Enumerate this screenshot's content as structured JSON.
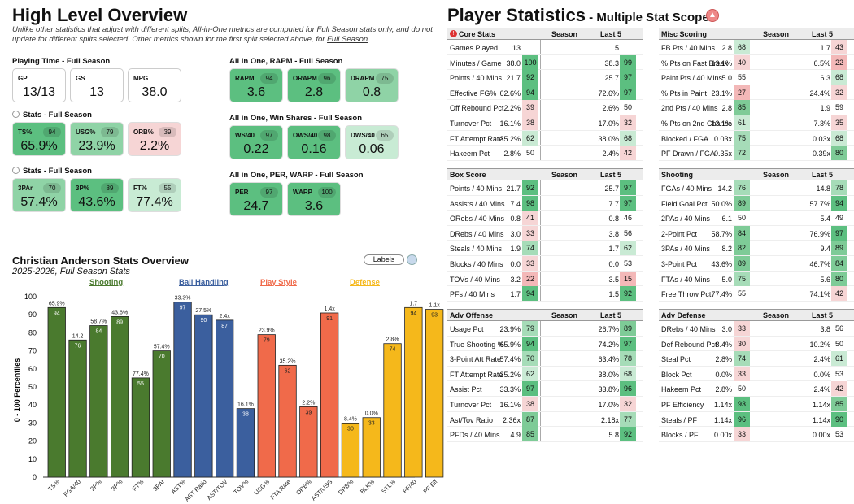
{
  "left": {
    "title": "High Level Overview",
    "note_parts": [
      "Unlike other statistics that adjust with different splits, All-in-One metrics are computed for ",
      "Full Season stats",
      " only, and do not update for different splits selected. Other metrics shown for the first split selected above, for ",
      "Full Season",
      "."
    ],
    "sections": [
      {
        "label": "Playing Time - Full Season",
        "cards": [
          {
            "lab": "GP",
            "val": "13/13",
            "pct": "",
            "color": "plain"
          },
          {
            "lab": "GS",
            "val": "13",
            "pct": "",
            "color": "plain"
          },
          {
            "lab": "MPG",
            "val": "38.0",
            "pct": "",
            "color": "plain"
          }
        ]
      },
      {
        "label": "Stats - Full Season",
        "cards": [
          {
            "lab": "TS%",
            "val": "65.9%",
            "pct": "94",
            "color": "g-dark"
          },
          {
            "lab": "USG%",
            "val": "23.9%",
            "pct": "79",
            "color": "g-mid"
          },
          {
            "lab": "ORB%",
            "val": "2.2%",
            "pct": "39",
            "color": "r-light"
          }
        ]
      },
      {
        "label": "Stats - Full Season",
        "cards": [
          {
            "lab": "3PAr",
            "val": "57.4%",
            "pct": "70",
            "color": "g-mid"
          },
          {
            "lab": "3P%",
            "val": "43.6%",
            "pct": "89",
            "color": "g-dark"
          },
          {
            "lab": "FT%",
            "val": "77.4%",
            "pct": "55",
            "color": "g-light"
          }
        ]
      },
      {
        "label": "All in One, RAPM - Full Season",
        "cards": [
          {
            "lab": "RAPM",
            "val": "3.6",
            "pct": "94",
            "color": "g-dark"
          },
          {
            "lab": "ORAPM",
            "val": "2.8",
            "pct": "96",
            "color": "g-dark"
          },
          {
            "lab": "DRAPM",
            "val": "0.8",
            "pct": "75",
            "color": "g-mid"
          }
        ]
      },
      {
        "label": "All in One, Win Shares - Full Season",
        "cards": [
          {
            "lab": "WS/40",
            "val": "0.22",
            "pct": "97",
            "color": "g-dark"
          },
          {
            "lab": "OWS/40",
            "val": "0.16",
            "pct": "98",
            "color": "g-dark"
          },
          {
            "lab": "DWS/40",
            "val": "0.06",
            "pct": "65",
            "color": "g-light"
          }
        ]
      },
      {
        "label": "All in One, PER, WARP - Full Season",
        "cards": [
          {
            "lab": "PER",
            "val": "24.7",
            "pct": "97",
            "color": "g-dark"
          },
          {
            "lab": "WARP",
            "val": "3.6",
            "pct": "100",
            "color": "g-dark"
          }
        ]
      }
    ],
    "chart_title": "Christian Anderson Stats Overview",
    "chart_subtitle": "2025-2026, Full Season Stats",
    "labels_button": "Labels",
    "categories": [
      {
        "name": "Shooting",
        "color": "#4a7a2e"
      },
      {
        "name": "Ball Handling",
        "color": "#3b5f9e"
      },
      {
        "name": "Play Style",
        "color": "#f06a4a"
      },
      {
        "name": "Defense",
        "color": "#f5b81b"
      }
    ]
  },
  "chart_data": {
    "type": "bar",
    "ylabel": "0 - 100 Percentiles",
    "ylim": [
      0,
      100
    ],
    "yticks": [
      0,
      10,
      20,
      30,
      40,
      50,
      60,
      70,
      80,
      90,
      100
    ],
    "categories": [
      "TS%",
      "FGA/40",
      "2P%",
      "3P%",
      "FT%",
      "3PAr",
      "AST%",
      "AST Ratio",
      "AST/TOV",
      "TOV%",
      "USG%",
      "FTA Rate",
      "ORB%",
      "AST/USG",
      "DRB%",
      "BLK%",
      "STL%",
      "PF/40",
      "PF Eff"
    ],
    "values": [
      94,
      76,
      84,
      89,
      55,
      70,
      97,
      90,
      87,
      38,
      79,
      62,
      39,
      91,
      30,
      33,
      74,
      94,
      93
    ],
    "top_labels": [
      "65.9%",
      "14.2",
      "58.7%",
      "43.6%",
      "77.4%",
      "57.4%",
      "33.3%",
      "27.5%",
      "2.4x",
      "16.1%",
      "23.9%",
      "35.2%",
      "2.2%",
      "1.4x",
      "8.4%",
      "0.0%",
      "2.8%",
      "1.7",
      "1.1x"
    ],
    "groups": [
      0,
      0,
      0,
      0,
      0,
      0,
      1,
      1,
      1,
      1,
      2,
      2,
      2,
      2,
      3,
      3,
      3,
      3,
      3
    ],
    "colors": [
      "#4a7a2e",
      "#3b5f9e",
      "#f06a4a",
      "#f5b81b"
    ]
  },
  "right": {
    "title": "Player Statistics",
    "subtitle": " - Multiple Stat Scopes",
    "season_hdr": "Season",
    "last5_hdr": "Last 5",
    "tables": [
      {
        "name": "Core Stats",
        "rows": [
          [
            "Games Played",
            "13",
            "",
            "5",
            ""
          ],
          [
            "Minutes / Game",
            "38.0",
            "100",
            "38.3",
            "99"
          ],
          [
            "Points / 40 Mins",
            "21.7",
            "92",
            "25.7",
            "97"
          ],
          [
            "Effective FG%",
            "62.6%",
            "94",
            "72.6%",
            "97"
          ],
          [
            "Off Rebound Pct",
            "2.2%",
            "39",
            "2.6%",
            "50"
          ],
          [
            "Turnover Pct",
            "16.1%",
            "38",
            "17.0%",
            "32"
          ],
          [
            "FT Attempt Rate",
            "35.2%",
            "62",
            "38.0%",
            "68"
          ],
          [
            "Hakeem Pct",
            "2.8%",
            "50",
            "2.4%",
            "42"
          ]
        ]
      },
      {
        "name": "Misc Scoring",
        "rows": [
          [
            "FB Pts / 40 Mins",
            "2.8",
            "68",
            "1.7",
            "43"
          ],
          [
            "% Pts on Fast Break",
            "13.1%",
            "40",
            "6.5%",
            "22"
          ],
          [
            "Paint Pts / 40 Mins",
            "5.0",
            "55",
            "6.3",
            "68"
          ],
          [
            "% Pts in Paint",
            "23.1%",
            "27",
            "24.4%",
            "32"
          ],
          [
            "2nd Pts / 40 Mins",
            "2.8",
            "85",
            "1.9",
            "59"
          ],
          [
            "% Pts on 2nd Chance",
            "13.1%",
            "61",
            "7.3%",
            "35"
          ],
          [
            "Blocked / FGA",
            "0.03x",
            "75",
            "0.03x",
            "68"
          ],
          [
            "PF Drawn / FGA",
            "0.35x",
            "72",
            "0.39x",
            "80"
          ]
        ]
      },
      {
        "name": "Box Score",
        "rows": [
          [
            "Points / 40 Mins",
            "21.7",
            "92",
            "25.7",
            "97"
          ],
          [
            "Assists / 40 Mins",
            "7.4",
            "98",
            "7.7",
            "97"
          ],
          [
            "ORebs / 40 Mins",
            "0.8",
            "41",
            "0.8",
            "46"
          ],
          [
            "DRebs / 40 Mins",
            "3.0",
            "33",
            "3.8",
            "56"
          ],
          [
            "Steals / 40 Mins",
            "1.9",
            "74",
            "1.7",
            "62"
          ],
          [
            "Blocks / 40 Mins",
            "0.0",
            "33",
            "0.0",
            "53"
          ],
          [
            "TOVs / 40 Mins",
            "3.2",
            "22",
            "3.5",
            "15"
          ],
          [
            "PFs / 40 Mins",
            "1.7",
            "94",
            "1.5",
            "92"
          ]
        ]
      },
      {
        "name": "Shooting",
        "rows": [
          [
            "FGAs / 40 Mins",
            "14.2",
            "76",
            "14.8",
            "78"
          ],
          [
            "Field Goal Pct",
            "50.0%",
            "89",
            "57.7%",
            "94"
          ],
          [
            "2PAs / 40 Mins",
            "6.1",
            "50",
            "5.4",
            "49"
          ],
          [
            "2-Point Pct",
            "58.7%",
            "84",
            "76.9%",
            "97"
          ],
          [
            "3PAs / 40 Mins",
            "8.2",
            "82",
            "9.4",
            "89"
          ],
          [
            "3-Point Pct",
            "43.6%",
            "89",
            "46.7%",
            "84"
          ],
          [
            "FTAs / 40 Mins",
            "5.0",
            "75",
            "5.6",
            "80"
          ],
          [
            "Free Throw Pct",
            "77.4%",
            "55",
            "74.1%",
            "42"
          ]
        ]
      },
      {
        "name": "Adv Offense",
        "rows": [
          [
            "Usage Pct",
            "23.9%",
            "79",
            "26.7%",
            "89"
          ],
          [
            "True Shooting %",
            "65.9%",
            "94",
            "74.2%",
            "97"
          ],
          [
            "3-Point Att Rate",
            "57.4%",
            "70",
            "63.4%",
            "78"
          ],
          [
            "FT Attempt Rate",
            "35.2%",
            "62",
            "38.0%",
            "68"
          ],
          [
            "Assist Pct",
            "33.3%",
            "97",
            "33.8%",
            "96"
          ],
          [
            "Turnover Pct",
            "16.1%",
            "38",
            "17.0%",
            "32"
          ],
          [
            "Ast/Tov Ratio",
            "2.36x",
            "87",
            "2.18x",
            "77"
          ],
          [
            "PFDs / 40 Mins",
            "4.9",
            "85",
            "5.8",
            "92"
          ]
        ]
      },
      {
        "name": "Adv Defense",
        "rows": [
          [
            "DRebs / 40 Mins",
            "3.0",
            "33",
            "3.8",
            "56"
          ],
          [
            "Def Rebound Pct",
            "8.4%",
            "30",
            "10.2%",
            "50"
          ],
          [
            "Steal Pct",
            "2.8%",
            "74",
            "2.4%",
            "61"
          ],
          [
            "Block Pct",
            "0.0%",
            "33",
            "0.0%",
            "53"
          ],
          [
            "Hakeem Pct",
            "2.8%",
            "50",
            "2.4%",
            "42"
          ],
          [
            "PF Efficiency",
            "1.14x",
            "93",
            "1.14x",
            "85"
          ],
          [
            "Steals / PF",
            "1.14x",
            "96",
            "1.14x",
            "90"
          ],
          [
            "Blocks / PF",
            "0.00x",
            "33",
            "0.00x",
            "53"
          ]
        ]
      }
    ]
  }
}
